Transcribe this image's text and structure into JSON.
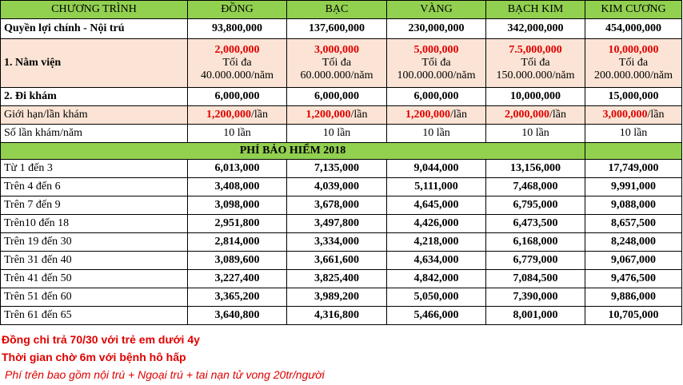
{
  "header": [
    "CHƯƠNG TRÌNH",
    "ĐỒNG",
    "BẠC",
    "VÀNG",
    "BẠCH KIM",
    "KIM CƯƠNG"
  ],
  "rows": {
    "main_benefit": {
      "label": "Quyền lợi chính - Nội trú",
      "values": [
        "93,800,000",
        "137,600,000",
        "230,000,000",
        "342,000,000",
        "454,000,000"
      ]
    },
    "hospital": {
      "label": "1. Nằm viện",
      "amounts": [
        "2,000,000",
        "3,000,000",
        "5,000,000",
        "7.5,000,000",
        "10,000,000"
      ],
      "max_label": "Tối đa",
      "max_values": [
        "40.000.000/năm",
        "60.000.000/năm",
        "100.000.000/năm",
        "150.000.000/năm",
        "200.000.000/năm"
      ]
    },
    "outpatient": {
      "label": "2. Đi khám",
      "values": [
        "6,000,000",
        "6,000,000",
        "6,000,000",
        "10,000,000",
        "15,000,000"
      ]
    },
    "per_visit": {
      "label": "Giới hạn/lần khám",
      "values": [
        "1,200,000",
        "1,200,000",
        "1,200,000",
        "2,000,000",
        "3,000,000"
      ],
      "unit": "/lần"
    },
    "visits": {
      "label": "Số lần khám/năm",
      "values": [
        "10 lần",
        "10 lần",
        "10 lần",
        "10 lần",
        "10 lần"
      ]
    }
  },
  "section_title": "PHÍ BẢO HIỂM 2018",
  "premiums": [
    {
      "label": "Từ 1 đến 3",
      "values": [
        "6,013,000",
        "7,135,000",
        "9,044,000",
        "13,156,000",
        "17,749,000"
      ]
    },
    {
      "label": "Trên 4 đến 6",
      "values": [
        "3,408,000",
        "4,039,000",
        "5,111,000",
        "7,468,000",
        "9,991,000"
      ]
    },
    {
      "label": "Trên 7 đến 9",
      "values": [
        "3,098,000",
        "3,678,000",
        "4,645,000",
        "6,795,000",
        "9,088,000"
      ]
    },
    {
      "label": "Trên10 đến 18",
      "values": [
        "2,951,800",
        "3,497,800",
        "4,426,000",
        "6,473,500",
        "8,657,500"
      ]
    },
    {
      "label": "Trên 19 đến 30",
      "values": [
        "2,814,000",
        "3,334,000",
        "4,218,000",
        "6,168,000",
        "8,248,000"
      ]
    },
    {
      "label": "Trên 31 đến 40",
      "values": [
        "3,089,600",
        "3,661,600",
        "4,634,000",
        "6,779,000",
        "9,067,000"
      ]
    },
    {
      "label": "Trên 41 đến 50",
      "values": [
        "3,227,400",
        "3,825,400",
        "4,842,000",
        "7,084,500",
        "9,476,500"
      ]
    },
    {
      "label": "Trên 51 đến 60",
      "values": [
        "3,365,200",
        "3,989,200",
        "5,050,000",
        "7,390,000",
        "9,886,000"
      ]
    },
    {
      "label": "Trên 61 đến 65",
      "values": [
        "3,640,800",
        "4,316,800",
        "5,466,000",
        "8,001,000",
        "10,705,000"
      ]
    }
  ],
  "notes": [
    "Đồng chi trả 70/30 với trẻ em dưới 4y",
    "Thời gian chờ 6m với bệnh hô hấp",
    "Phí trên bao gồm nội trú + Ngoại trú + tai nạn tử vong 20tr/người"
  ],
  "colors": {
    "header_bg": "#92d050",
    "peach_bg": "#fbe4d5",
    "red_text": "#e00000"
  }
}
